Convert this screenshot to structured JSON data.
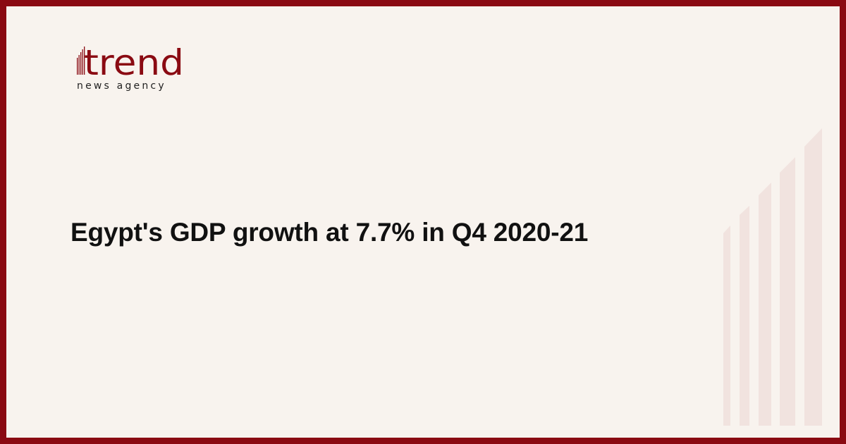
{
  "logo": {
    "word": "trend",
    "tagline": "news agency",
    "color": "#8a0a12"
  },
  "headline": "Egypt's GDP growth at 7.7% in Q4 2020-21",
  "colors": {
    "border": "#8a0a12",
    "background": "#f8f3ee",
    "decor_bars": "#f1e3df"
  }
}
